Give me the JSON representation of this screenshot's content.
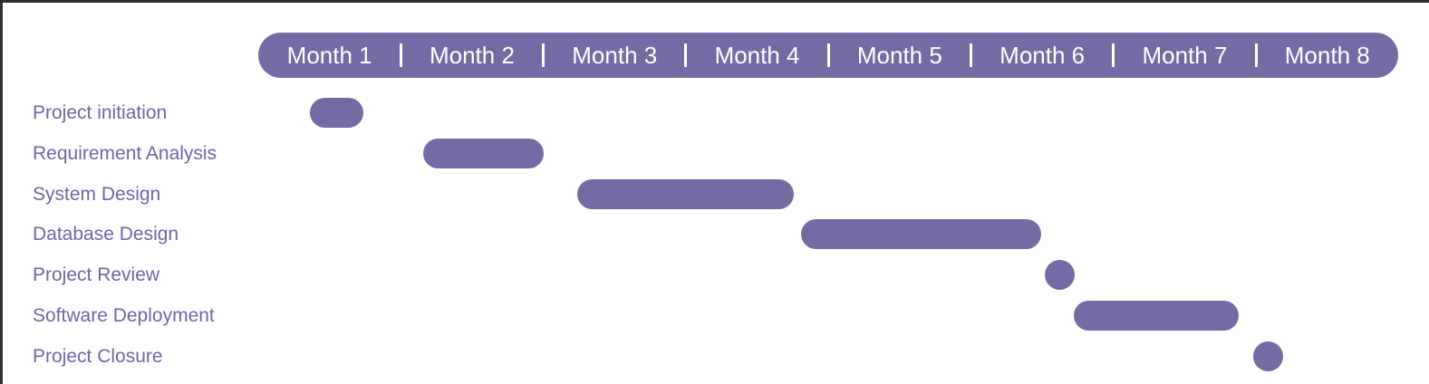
{
  "chart_data": {
    "type": "gantt",
    "months": [
      "Month 1",
      "Month 2",
      "Month 3",
      "Month 4",
      "Month 5",
      "Month 6",
      "Month 7",
      "Month 8"
    ],
    "tasks": [
      {
        "label": "Project initiation",
        "start": 0.36,
        "end": 0.74
      },
      {
        "label": "Requirement Analysis",
        "start": 1.16,
        "end": 2.0
      },
      {
        "label": "System Design",
        "start": 2.24,
        "end": 3.76
      },
      {
        "label": "Database Design",
        "start": 3.81,
        "end": 5.49
      },
      {
        "label": "Project Review",
        "start": 5.52,
        "end": 5.73
      },
      {
        "label": "Software Deployment",
        "start": 5.72,
        "end": 6.88
      },
      {
        "label": "Project Closure",
        "start": 6.98,
        "end": 7.18
      }
    ],
    "color": "#746aa4"
  }
}
